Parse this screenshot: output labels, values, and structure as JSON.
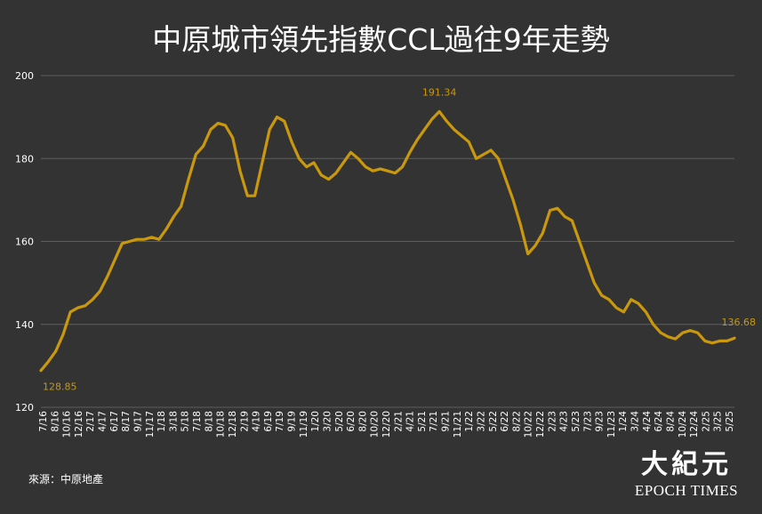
{
  "chart_data": {
    "type": "line",
    "title": "中原城市領先指數CCL過往9年走勢",
    "ylim": [
      120,
      200
    ],
    "yticks": [
      120,
      140,
      160,
      180,
      200
    ],
    "xticks": [
      "7/16",
      "8/16",
      "10/16",
      "12/16",
      "2/17",
      "4/17",
      "6/17",
      "8/17",
      "9/17",
      "11/17",
      "1/18",
      "3/18",
      "5/18",
      "7/18",
      "8/18",
      "10/18",
      "12/18",
      "2/19",
      "4/19",
      "6/19",
      "7/19",
      "9/19",
      "11/19",
      "1/20",
      "3/20",
      "5/20",
      "6/20",
      "8/20",
      "10/20",
      "12/20",
      "2/21",
      "4/21",
      "5/21",
      "7/21",
      "9/21",
      "11/21",
      "1/22",
      "3/22",
      "5/22",
      "6/22",
      "8/22",
      "10/22",
      "12/22",
      "2/23",
      "4/23",
      "5/23",
      "7/23",
      "9/23",
      "11/23",
      "1/24",
      "3/24",
      "4/24",
      "6/24",
      "8/24",
      "10/24",
      "12/24",
      "2/25",
      "3/25",
      "5/25"
    ],
    "grid": true,
    "line_color": "#C9980C",
    "series": [
      {
        "values": [
          128.85,
          131,
          133.5,
          137.5,
          143,
          144,
          144.5,
          146,
          148,
          151.5,
          155.5,
          159.5,
          160,
          160.5,
          160.5,
          161,
          160.5,
          163,
          166,
          168.5,
          175,
          181,
          183,
          187,
          188.5,
          188,
          185,
          177,
          171,
          171,
          179,
          187,
          190,
          189,
          184,
          180,
          178,
          179,
          176,
          175,
          176.5,
          179,
          181.5,
          180,
          178,
          177,
          177.5,
          177,
          176.5,
          178,
          181.5,
          184.5,
          187,
          189.5,
          191.34,
          189,
          187,
          185.5,
          184,
          180,
          181,
          182,
          180,
          175,
          170,
          164,
          157,
          159,
          162,
          167.5,
          168,
          166,
          165,
          160,
          155,
          150,
          147,
          146,
          144,
          143,
          146,
          145,
          143,
          140,
          138,
          137,
          136.5,
          138,
          138.5,
          138,
          136,
          135.5,
          136,
          136,
          136.68
        ]
      }
    ],
    "annotations": [
      {
        "label": "128.85",
        "index": 0
      },
      {
        "label": "191.34",
        "index": 54
      },
      {
        "label": "136.68",
        "index": 94
      }
    ]
  },
  "source": "來源：中原地產",
  "logo": {
    "chinese": "大紀元",
    "english": "EPOCH TIMES"
  }
}
